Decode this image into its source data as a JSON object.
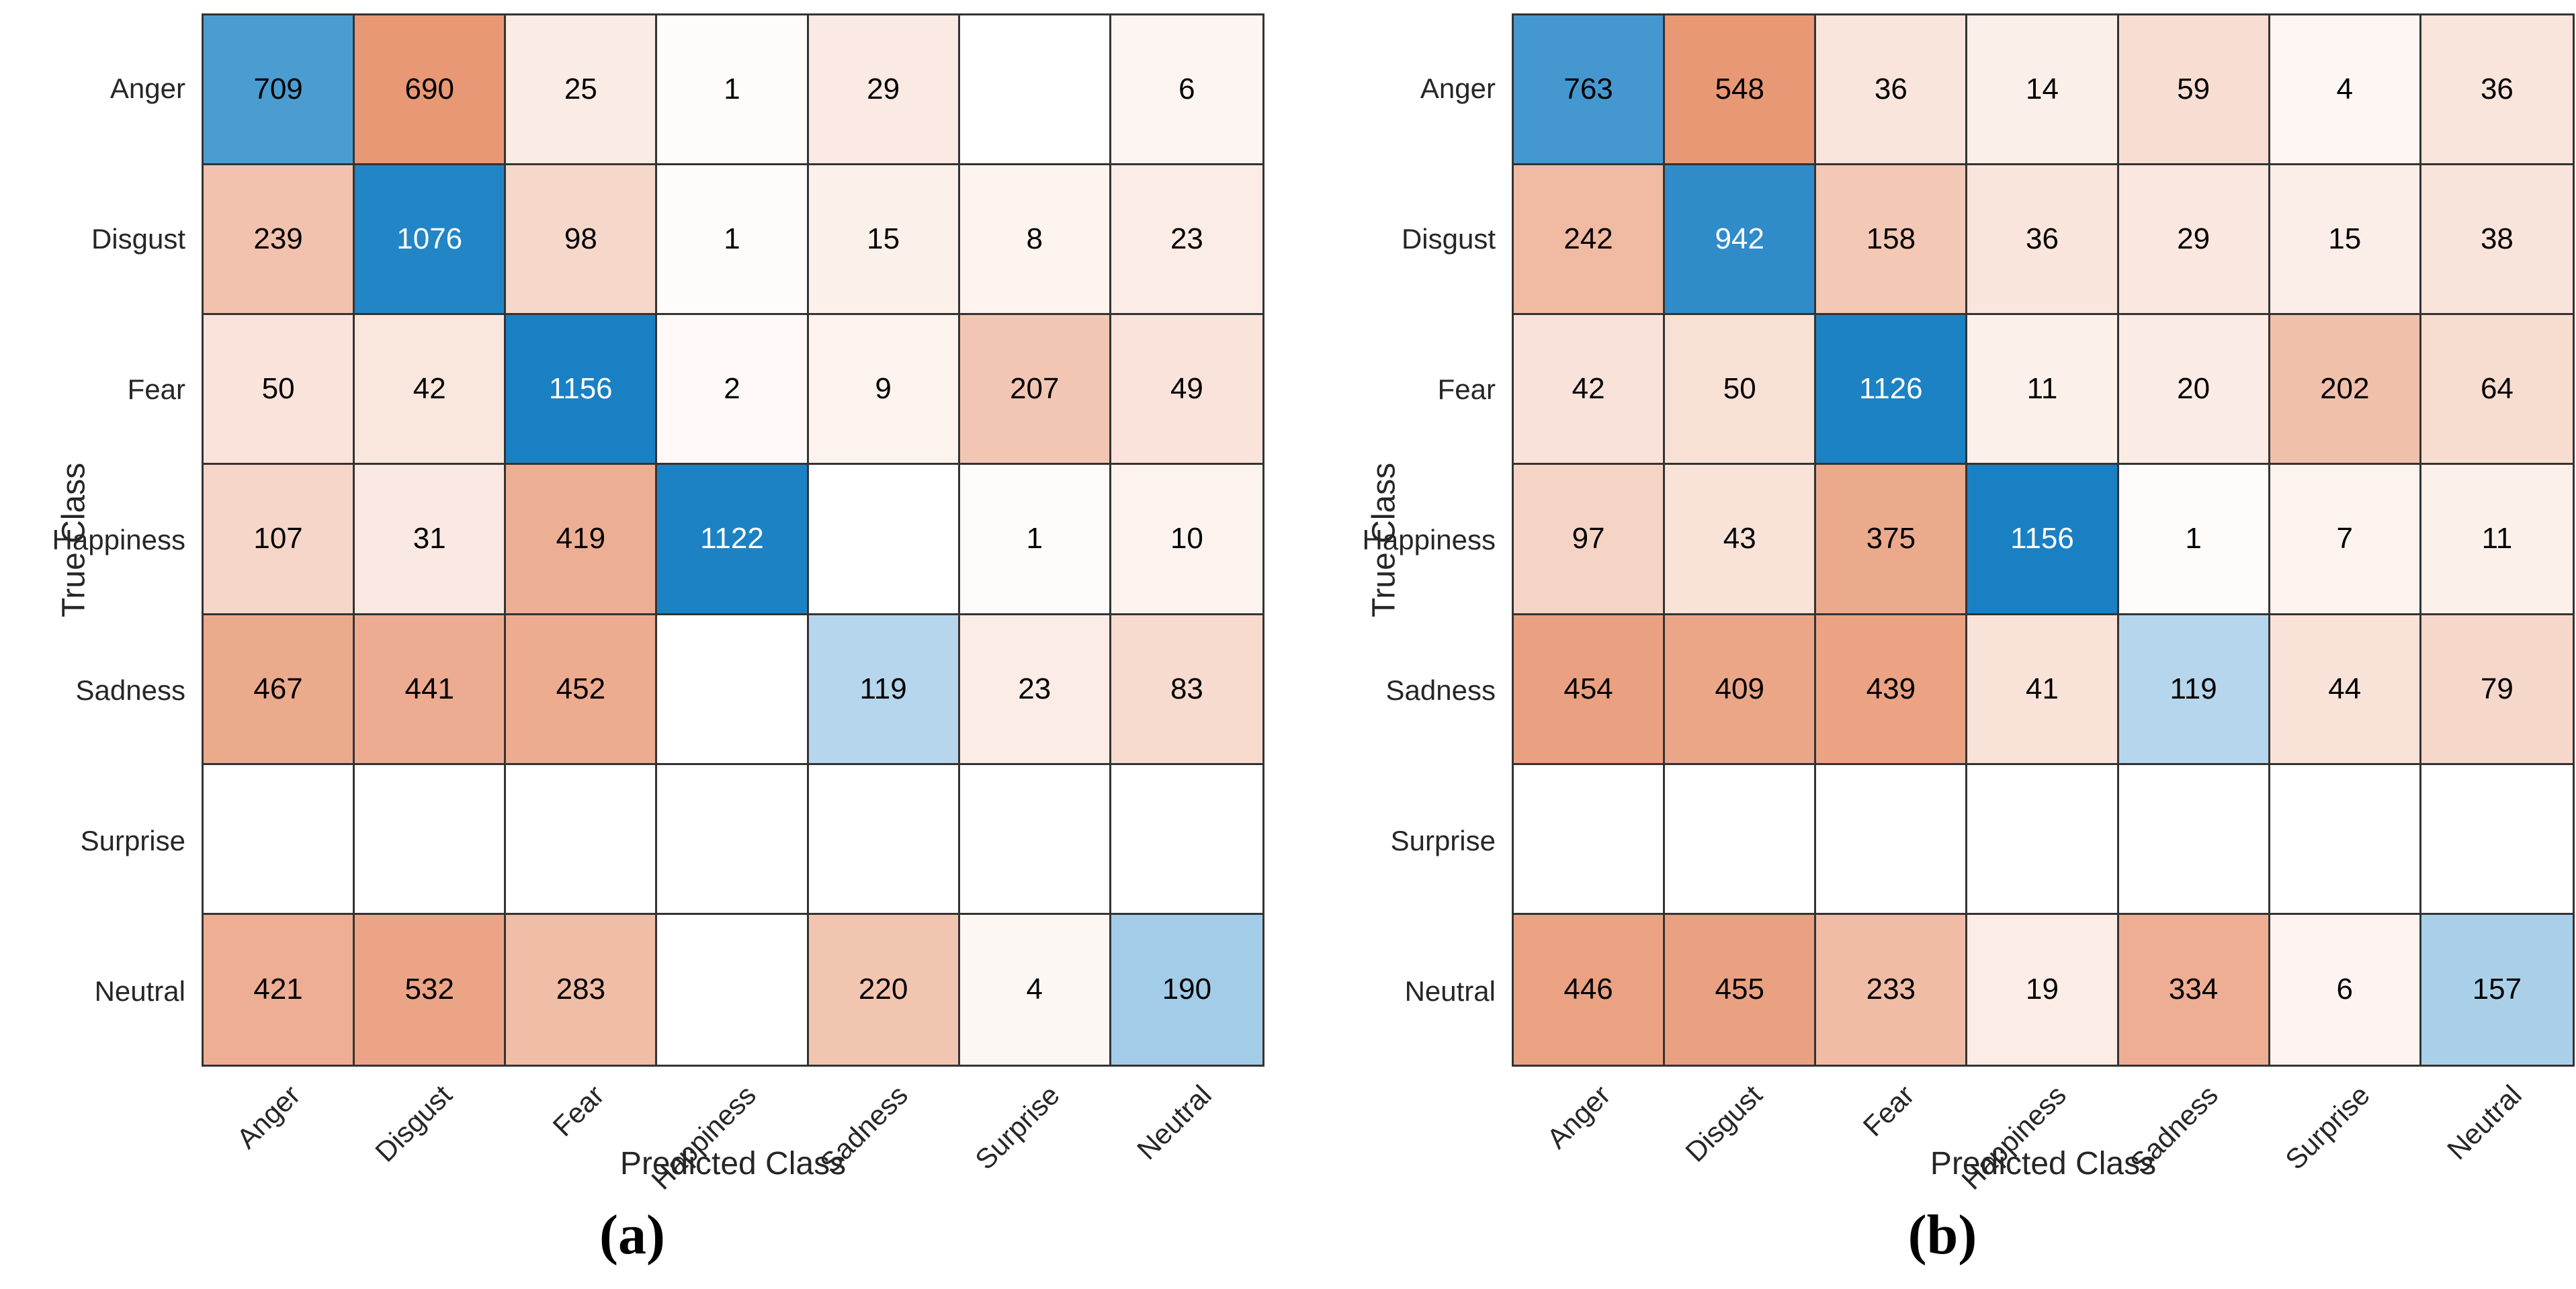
{
  "figure": {
    "background": "#ffffff",
    "description": "Two side-by-side confusion matrix heatmaps"
  },
  "colors": {
    "diagonal_base": "#0072BD",
    "off_diagonal_base": "#D95319",
    "zero_cell": "#FFFFFF",
    "grid_line": "#333333",
    "label_text": "#262626",
    "value_text": "#000000",
    "value_text_on_dark": "#FFFFFF"
  },
  "chart_data": [
    {
      "type": "heatmap",
      "panel": "a",
      "caption": "(a)",
      "xlabel": "Predicted Class",
      "ylabel": "True Class",
      "categories": [
        "Anger",
        "Disgust",
        "Fear",
        "Happiness",
        "Sadness",
        "Surprise",
        "Neutral"
      ],
      "matrix": [
        [
          709,
          690,
          25,
          1,
          29,
          null,
          6
        ],
        [
          239,
          1076,
          98,
          1,
          15,
          8,
          23
        ],
        [
          50,
          42,
          1156,
          2,
          9,
          207,
          49
        ],
        [
          107,
          31,
          419,
          1122,
          null,
          1,
          10
        ],
        [
          467,
          441,
          452,
          null,
          119,
          23,
          83
        ],
        [
          null,
          null,
          null,
          null,
          null,
          null,
          null
        ],
        [
          421,
          532,
          283,
          null,
          220,
          4,
          190
        ]
      ],
      "legend_position": "none",
      "grid": true
    },
    {
      "type": "heatmap",
      "panel": "b",
      "caption": "(b)",
      "xlabel": "Predicted Class",
      "ylabel": "True Class",
      "categories": [
        "Anger",
        "Disgust",
        "Fear",
        "Happiness",
        "Sadness",
        "Surprise",
        "Neutral"
      ],
      "matrix": [
        [
          763,
          548,
          36,
          14,
          59,
          4,
          36
        ],
        [
          242,
          942,
          158,
          36,
          29,
          15,
          38
        ],
        [
          42,
          50,
          1126,
          11,
          20,
          202,
          64
        ],
        [
          97,
          43,
          375,
          1156,
          1,
          7,
          11
        ],
        [
          454,
          409,
          439,
          41,
          119,
          44,
          79
        ],
        [
          null,
          null,
          null,
          null,
          null,
          null,
          null
        ],
        [
          446,
          455,
          233,
          19,
          334,
          6,
          157
        ]
      ],
      "legend_position": "none",
      "grid": true
    }
  ]
}
